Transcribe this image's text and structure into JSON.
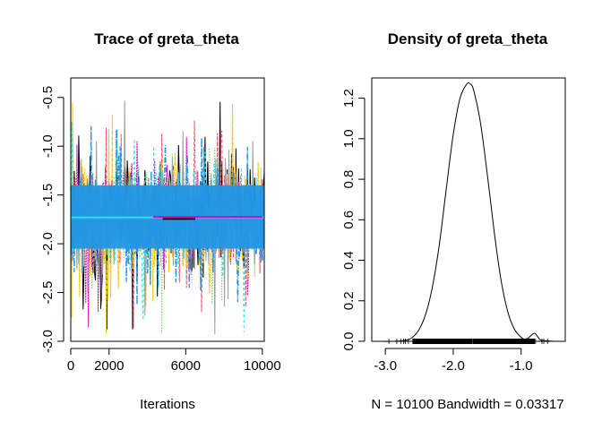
{
  "chart_data": [
    {
      "type": "line",
      "title": "Trace of greta_theta",
      "xlabel": "Iterations",
      "ylabel": "",
      "xlim": [
        0,
        10100
      ],
      "ylim": [
        -3.0,
        -0.3
      ],
      "x_ticks": [
        0,
        2000,
        6000,
        10000
      ],
      "x_tick_labels": [
        "0",
        "2000",
        "6000",
        "10000"
      ],
      "y_ticks": [
        -3.0,
        -2.5,
        -2.0,
        -1.5,
        -1.0,
        -0.5
      ],
      "y_tick_labels": [
        "-3.0",
        "-2.5",
        "-2.0",
        "-1.5",
        "-1.0",
        "-0.5"
      ],
      "series_colors": [
        "#000000",
        "#DF536B",
        "#61D04F",
        "#2297E6",
        "#28E2E5",
        "#CD0BBC",
        "#F5C710",
        "#9E9E9E"
      ],
      "center": -1.73,
      "central_band": [
        -2.05,
        -1.4
      ],
      "range": [
        -3.0,
        -0.3
      ],
      "flat_segments": [
        {
          "x": [
            0,
            10100
          ],
          "y": -1.73,
          "color": "#28E2E5"
        },
        {
          "x": [
            4300,
            10000
          ],
          "y": -1.725,
          "color": "#CD0BBC"
        },
        {
          "x": [
            4800,
            6500
          ],
          "y": -1.745,
          "color": "#000000"
        }
      ],
      "grid": false
    },
    {
      "type": "line",
      "title": "Density of greta_theta",
      "xlabel": "N = 10100   Bandwidth = 0.03317",
      "ylabel": "",
      "xlim": [
        -3.2,
        -0.35
      ],
      "ylim": [
        0,
        1.3
      ],
      "x_ticks": [
        -3.0,
        -2.0,
        -1.0
      ],
      "x_tick_labels": [
        "-3.0",
        "-2.0",
        "-1.0"
      ],
      "y_ticks": [
        0.0,
        0.2,
        0.4,
        0.6,
        0.8,
        1.0,
        1.2
      ],
      "y_tick_labels": [
        "0.0",
        "0.2",
        "0.4",
        "0.6",
        "0.8",
        "1.0",
        "1.2"
      ],
      "density_x": [
        -3.1,
        -2.9,
        -2.7,
        -2.6,
        -2.5,
        -2.4,
        -2.3,
        -2.2,
        -2.1,
        -2.0,
        -1.9,
        -1.8,
        -1.75,
        -1.7,
        -1.6,
        -1.5,
        -1.4,
        -1.3,
        -1.2,
        -1.1,
        -1.0,
        -0.95,
        -0.9,
        -0.85,
        -0.8,
        -0.75,
        -0.7,
        -0.5
      ],
      "density_y": [
        0.0,
        0.0,
        0.005,
        0.02,
        0.06,
        0.14,
        0.28,
        0.49,
        0.76,
        1.02,
        1.2,
        1.27,
        1.27,
        1.24,
        1.08,
        0.83,
        0.55,
        0.31,
        0.15,
        0.06,
        0.02,
        0.01,
        0.015,
        0.03,
        0.04,
        0.02,
        0.005,
        0.0
      ],
      "rug_range": [
        -2.95,
        -0.55
      ],
      "rug_dense_range": [
        -2.6,
        -0.8
      ],
      "grid": false
    }
  ]
}
